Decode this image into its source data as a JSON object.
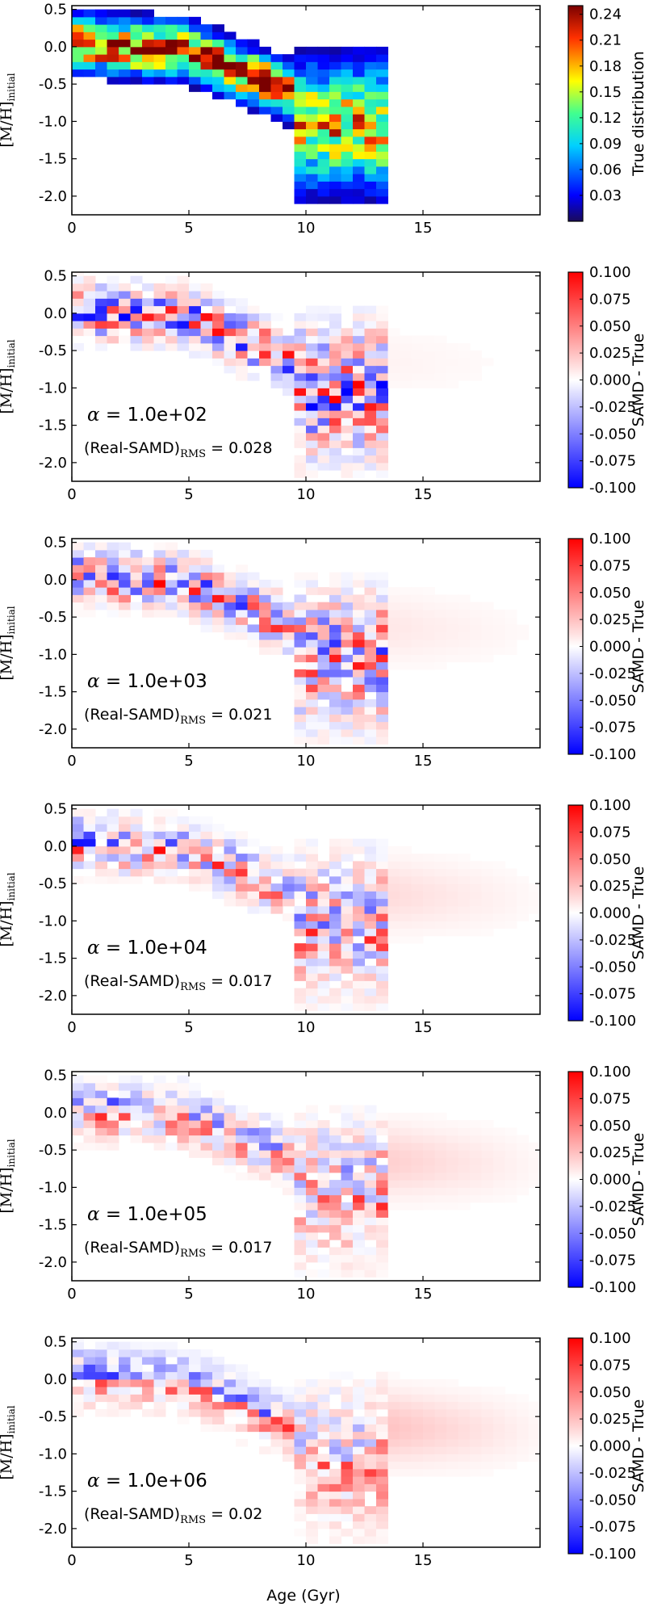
{
  "chart_data": [
    {
      "type": "heatmap",
      "panel": 1,
      "xlim": [
        0,
        20
      ],
      "ylim": [
        -2.25,
        0.55
      ],
      "xticks": [
        "0",
        "5",
        "10",
        "15"
      ],
      "yticks": [
        "0.5",
        "0.0",
        "-0.5",
        "-1.0",
        "-1.5",
        "-2.0"
      ],
      "ylabel_main": "[M/H]",
      "ylabel_sub": "initial",
      "colormap": "jet",
      "clim": [
        0,
        0.25
      ],
      "colorbar_label": "True distribution",
      "colorbar_ticks": [
        "0.03",
        "0.06",
        "0.09",
        "0.12",
        "0.15",
        "0.18",
        "0.21",
        "0.24"
      ]
    },
    {
      "type": "heatmap",
      "panel": 2,
      "xlim": [
        0,
        20
      ],
      "ylim": [
        -2.25,
        0.55
      ],
      "xticks": [
        "0",
        "5",
        "10",
        "15"
      ],
      "yticks": [
        "0.5",
        "0.0",
        "-0.5",
        "-1.0",
        "-1.5",
        "-2.0"
      ],
      "ylabel_main": "[M/H]",
      "ylabel_sub": "initial",
      "colormap": "bwr",
      "clim": [
        -0.1,
        0.1
      ],
      "colorbar_label": "SAMD - True",
      "colorbar_ticks": [
        "0.100",
        "0.075",
        "0.050",
        "0.025",
        "0.000",
        "-0.025",
        "-0.050",
        "-0.075",
        "-0.100"
      ],
      "alpha_symbol": "α",
      "alpha_text": " = 1.0e+02",
      "alpha_value": 100,
      "rms_main": "(Real-SAMD)",
      "rms_sub": "RMS",
      "rms_value": " = 0.028",
      "smoothing": 0
    },
    {
      "type": "heatmap",
      "panel": 3,
      "xlim": [
        0,
        20
      ],
      "ylim": [
        -2.25,
        0.55
      ],
      "xticks": [
        "0",
        "5",
        "10",
        "15"
      ],
      "yticks": [
        "0.5",
        "0.0",
        "-0.5",
        "-1.0",
        "-1.5",
        "-2.0"
      ],
      "ylabel_main": "[M/H]",
      "ylabel_sub": "initial",
      "colormap": "bwr",
      "clim": [
        -0.1,
        0.1
      ],
      "colorbar_label": "SAMD - True",
      "colorbar_ticks": [
        "0.100",
        "0.075",
        "0.050",
        "0.025",
        "0.000",
        "-0.025",
        "-0.050",
        "-0.075",
        "-0.100"
      ],
      "alpha_symbol": "α",
      "alpha_text": " = 1.0e+03",
      "alpha_value": 1000,
      "rms_main": "(Real-SAMD)",
      "rms_sub": "RMS",
      "rms_value": " = 0.021",
      "smoothing": 0.25
    },
    {
      "type": "heatmap",
      "panel": 4,
      "xlim": [
        0,
        20
      ],
      "ylim": [
        -2.25,
        0.55
      ],
      "xticks": [
        "0",
        "5",
        "10",
        "15"
      ],
      "yticks": [
        "0.5",
        "0.0",
        "-0.5",
        "-1.0",
        "-1.5",
        "-2.0"
      ],
      "ylabel_main": "[M/H]",
      "ylabel_sub": "initial",
      "colormap": "bwr",
      "clim": [
        -0.1,
        0.1
      ],
      "colorbar_label": "SAMD - True",
      "colorbar_ticks": [
        "0.100",
        "0.075",
        "0.050",
        "0.025",
        "0.000",
        "-0.025",
        "-0.050",
        "-0.075",
        "-0.100"
      ],
      "alpha_symbol": "α",
      "alpha_text": " = 1.0e+04",
      "alpha_value": 10000,
      "rms_main": "(Real-SAMD)",
      "rms_sub": "RMS",
      "rms_value": " = 0.017",
      "smoothing": 0.5
    },
    {
      "type": "heatmap",
      "panel": 5,
      "xlim": [
        0,
        20
      ],
      "ylim": [
        -2.25,
        0.55
      ],
      "xticks": [
        "0",
        "5",
        "10",
        "15"
      ],
      "yticks": [
        "0.5",
        "0.0",
        "-0.5",
        "-1.0",
        "-1.5",
        "-2.0"
      ],
      "ylabel_main": "[M/H]",
      "ylabel_sub": "initial",
      "colormap": "bwr",
      "clim": [
        -0.1,
        0.1
      ],
      "colorbar_label": "SAMD - True",
      "colorbar_ticks": [
        "0.100",
        "0.075",
        "0.050",
        "0.025",
        "0.000",
        "-0.025",
        "-0.050",
        "-0.075",
        "-0.100"
      ],
      "alpha_symbol": "α",
      "alpha_text": " = 1.0e+05",
      "alpha_value": 100000,
      "rms_main": "(Real-SAMD)",
      "rms_sub": "RMS",
      "rms_value": " = 0.017",
      "smoothing": 0.75
    },
    {
      "type": "heatmap",
      "panel": 6,
      "xlim": [
        0,
        20
      ],
      "ylim": [
        -2.25,
        0.55
      ],
      "xticks": [
        "0",
        "5",
        "10",
        "15"
      ],
      "yticks": [
        "0.5",
        "0.0",
        "-0.5",
        "-1.0",
        "-1.5",
        "-2.0"
      ],
      "ylabel_main": "[M/H]",
      "ylabel_sub": "initial",
      "colormap": "bwr",
      "clim": [
        -0.1,
        0.1
      ],
      "colorbar_label": "SAMD - True",
      "colorbar_ticks": [
        "0.100",
        "0.075",
        "0.050",
        "0.025",
        "0.000",
        "-0.025",
        "-0.050",
        "-0.075",
        "-0.100"
      ],
      "alpha_symbol": "α",
      "alpha_text": " = 1.0e+06",
      "alpha_value": 1000000,
      "rms_main": "(Real-SAMD)",
      "rms_sub": "RMS",
      "rms_value": " = 0.02",
      "smoothing": 1.0,
      "xlabel": "Age (Gyr)"
    }
  ]
}
